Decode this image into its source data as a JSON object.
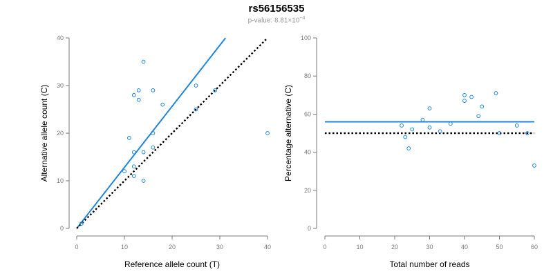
{
  "title": "rs56156535",
  "subtitle": {
    "prefix": "p-value: 8.81×10",
    "exponent": "−4"
  },
  "colors": {
    "points": "#1f86e0",
    "fit_line": "#1f86e0",
    "reference_line": "#000000",
    "axis": "#777777"
  },
  "chart_data": [
    {
      "type": "scatter",
      "xlabel": "Reference allele count (T)",
      "ylabel": "Alternative allele count (C)",
      "xlim": [
        0,
        40
      ],
      "ylim": [
        0,
        40
      ],
      "xticks": [
        0,
        10,
        20,
        30,
        40
      ],
      "yticks": [
        0,
        10,
        20,
        30,
        40
      ],
      "points": [
        {
          "x": 1,
          "y": 1
        },
        {
          "x": 10,
          "y": 12
        },
        {
          "x": 11,
          "y": 19
        },
        {
          "x": 12,
          "y": 28
        },
        {
          "x": 12,
          "y": 16
        },
        {
          "x": 12,
          "y": 13
        },
        {
          "x": 12,
          "y": 11
        },
        {
          "x": 13,
          "y": 29
        },
        {
          "x": 13,
          "y": 27
        },
        {
          "x": 14,
          "y": 35
        },
        {
          "x": 14,
          "y": 16
        },
        {
          "x": 14,
          "y": 10
        },
        {
          "x": 16,
          "y": 29
        },
        {
          "x": 16,
          "y": 20
        },
        {
          "x": 16,
          "y": 17
        },
        {
          "x": 18,
          "y": 26
        },
        {
          "x": 25,
          "y": 30
        },
        {
          "x": 25,
          "y": 25
        },
        {
          "x": 29,
          "y": 29
        },
        {
          "x": 40,
          "y": 20
        }
      ],
      "lines": [
        {
          "name": "fit",
          "style": "solid",
          "x": [
            0,
            31.2
          ],
          "y": [
            0,
            40
          ]
        },
        {
          "name": "expected",
          "style": "dotted",
          "x": [
            0,
            40
          ],
          "y": [
            0,
            40
          ]
        }
      ]
    },
    {
      "type": "scatter",
      "xlabel": "Total number of reads",
      "ylabel": "Percentage alternative (C)",
      "xlim": [
        0,
        60
      ],
      "ylim": [
        0,
        100
      ],
      "xticks": [
        0,
        10,
        20,
        30,
        40,
        50,
        60
      ],
      "yticks": [
        0,
        20,
        40,
        60,
        80,
        100
      ],
      "points": [
        {
          "x": 22,
          "y": 54
        },
        {
          "x": 23,
          "y": 48
        },
        {
          "x": 24,
          "y": 42
        },
        {
          "x": 25,
          "y": 52
        },
        {
          "x": 28,
          "y": 57
        },
        {
          "x": 30,
          "y": 63
        },
        {
          "x": 30,
          "y": 53
        },
        {
          "x": 33,
          "y": 51
        },
        {
          "x": 36,
          "y": 55
        },
        {
          "x": 40,
          "y": 70
        },
        {
          "x": 40,
          "y": 67
        },
        {
          "x": 42,
          "y": 69
        },
        {
          "x": 44,
          "y": 59
        },
        {
          "x": 45,
          "y": 64
        },
        {
          "x": 49,
          "y": 71
        },
        {
          "x": 50,
          "y": 50
        },
        {
          "x": 55,
          "y": 54
        },
        {
          "x": 58,
          "y": 50
        },
        {
          "x": 60,
          "y": 33
        }
      ],
      "lines": [
        {
          "name": "mean",
          "style": "solid",
          "x": [
            0,
            60
          ],
          "y": [
            56,
            56
          ]
        },
        {
          "name": "expected",
          "style": "dotted",
          "x": [
            0,
            60
          ],
          "y": [
            50,
            50
          ]
        }
      ]
    }
  ]
}
